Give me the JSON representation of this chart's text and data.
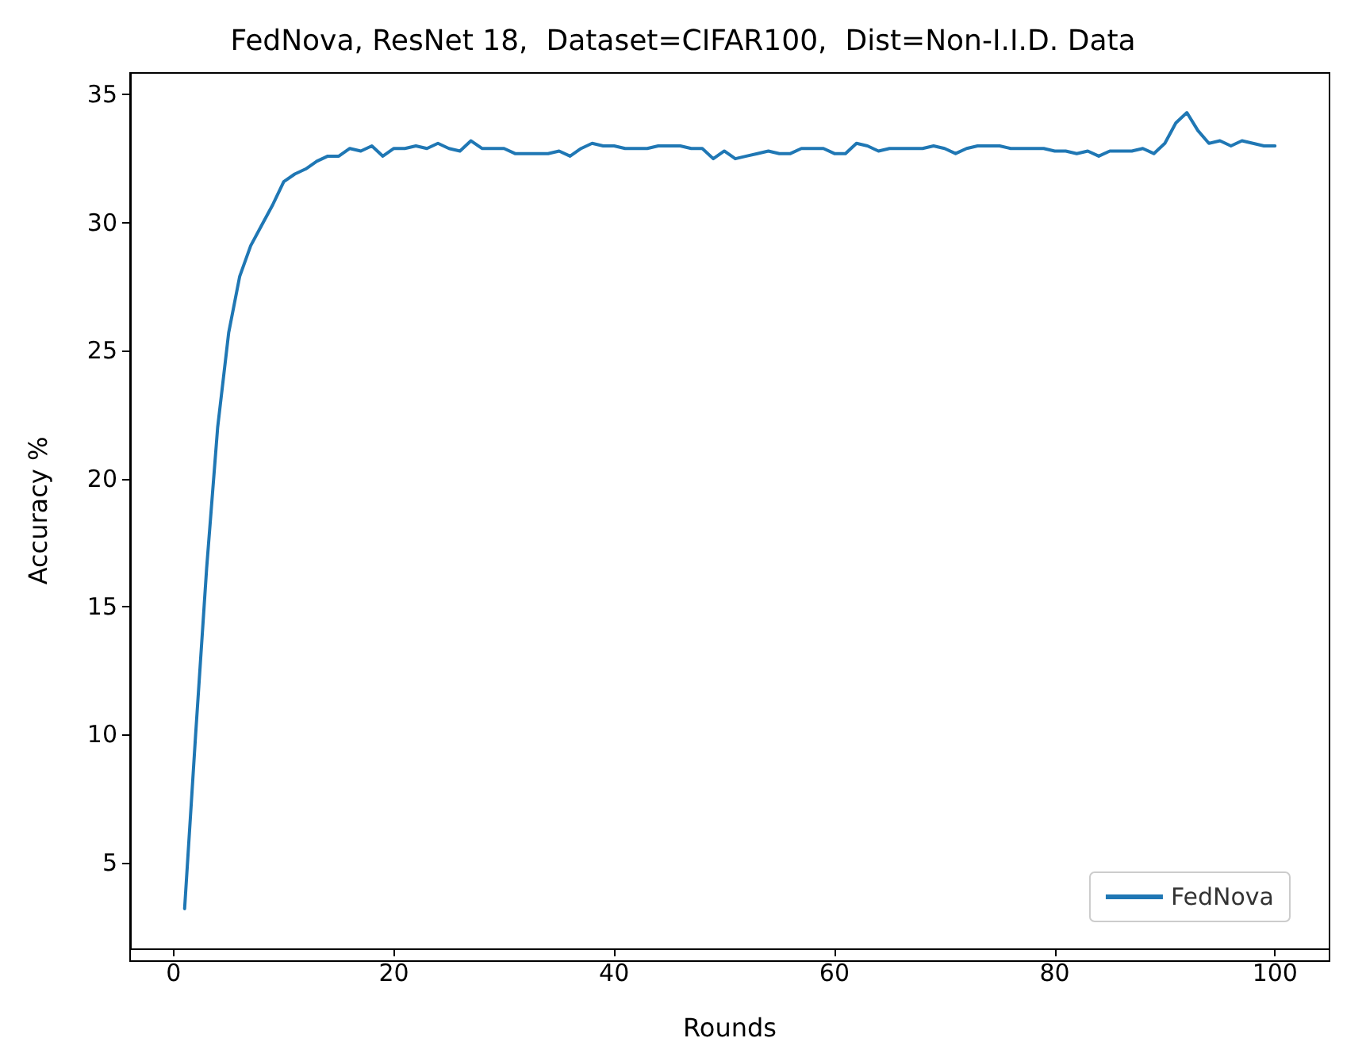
{
  "chart_data": {
    "type": "line",
    "title": "FedNova, ResNet 18,  Dataset=CIFAR100,  Dist=Non-I.I.D. Data",
    "xlabel": "Rounds",
    "ylabel": "Accuracy %",
    "x": [
      1,
      2,
      3,
      4,
      5,
      6,
      7,
      8,
      9,
      10,
      11,
      12,
      13,
      14,
      15,
      16,
      17,
      18,
      19,
      20,
      21,
      22,
      23,
      24,
      25,
      26,
      27,
      28,
      29,
      30,
      31,
      32,
      33,
      34,
      35,
      36,
      37,
      38,
      39,
      40,
      41,
      42,
      43,
      44,
      45,
      46,
      47,
      48,
      49,
      50,
      51,
      52,
      53,
      54,
      55,
      56,
      57,
      58,
      59,
      60,
      61,
      62,
      63,
      64,
      65,
      66,
      67,
      68,
      69,
      70,
      71,
      72,
      73,
      74,
      75,
      76,
      77,
      78,
      79,
      80,
      81,
      82,
      83,
      84,
      85,
      86,
      87,
      88,
      89,
      90,
      91,
      92,
      93,
      94,
      95,
      96,
      97,
      98,
      99,
      100
    ],
    "series": [
      {
        "name": "FedNova",
        "color": "#1f77b4",
        "values": [
          3.2,
          10,
          16.5,
          22,
          25.7,
          27.9,
          29.1,
          29.9,
          30.7,
          31.6,
          31.9,
          32.1,
          32.4,
          32.6,
          32.6,
          32.9,
          32.8,
          33.0,
          32.6,
          32.9,
          32.9,
          33.0,
          32.9,
          33.1,
          32.9,
          32.8,
          33.2,
          32.9,
          32.9,
          32.9,
          32.7,
          32.7,
          32.7,
          32.7,
          32.8,
          32.6,
          32.9,
          33.1,
          33.0,
          33.0,
          32.9,
          32.9,
          32.9,
          33.0,
          33.0,
          33.0,
          32.9,
          32.9,
          32.5,
          32.8,
          32.5,
          32.6,
          32.7,
          32.8,
          32.7,
          32.7,
          32.9,
          32.9,
          32.9,
          32.7,
          32.7,
          33.1,
          33.0,
          32.8,
          32.9,
          32.9,
          32.9,
          32.9,
          33.0,
          32.9,
          32.7,
          32.9,
          33.0,
          33.0,
          33.0,
          32.9,
          32.9,
          32.9,
          32.9,
          32.8,
          32.8,
          32.7,
          32.8,
          32.6,
          32.8,
          32.8,
          32.8,
          32.9,
          32.7,
          33.1,
          33.9,
          34.3,
          33.6,
          33.1,
          33.2,
          33.0,
          33.2,
          33.1,
          33.0,
          33.0
        ]
      }
    ],
    "xlim": [
      -3.95,
      104.95
    ],
    "xticks": [
      0,
      20,
      40,
      60,
      80,
      100
    ],
    "ylim": [
      1.65,
      35.85
    ],
    "yticks": [
      5,
      10,
      15,
      20,
      25,
      30,
      35
    ],
    "grid": false,
    "legend": "bottom right",
    "marker": "none",
    "line_style": "solid"
  }
}
